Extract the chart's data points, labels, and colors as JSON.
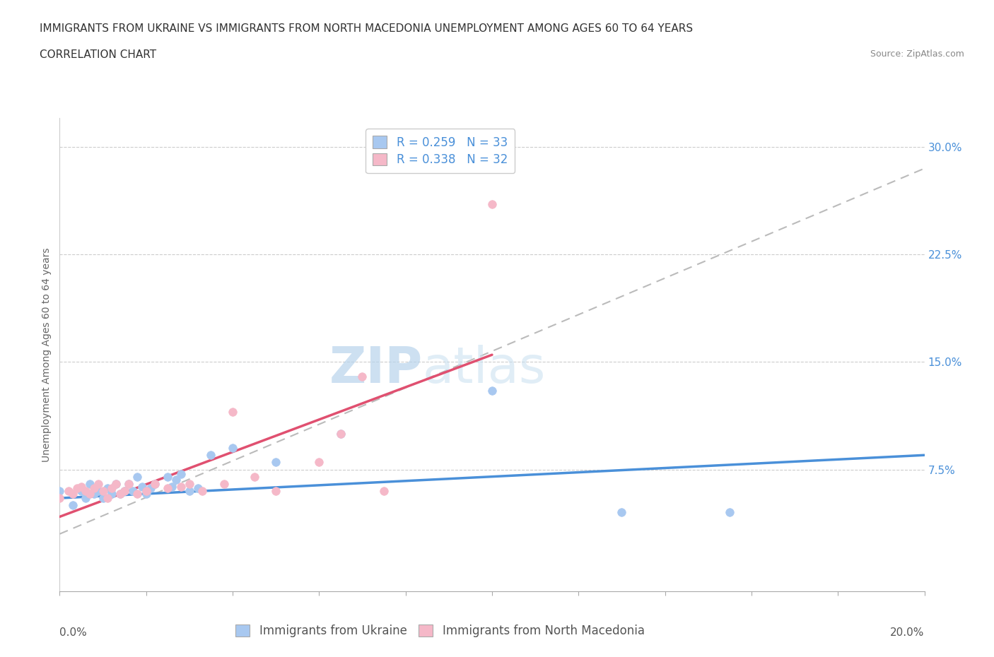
{
  "title_line1": "IMMIGRANTS FROM UKRAINE VS IMMIGRANTS FROM NORTH MACEDONIA UNEMPLOYMENT AMONG AGES 60 TO 64 YEARS",
  "title_line2": "CORRELATION CHART",
  "source": "Source: ZipAtlas.com",
  "ylabel": "Unemployment Among Ages 60 to 64 years",
  "yticks": [
    0.0,
    0.075,
    0.15,
    0.225,
    0.3
  ],
  "ytick_labels": [
    "",
    "7.5%",
    "15.0%",
    "22.5%",
    "30.0%"
  ],
  "xtick_labels": [
    "0.0%",
    "",
    "",
    "",
    "",
    "",
    "",
    "",
    "",
    "",
    "20.0%"
  ],
  "xmin": 0.0,
  "xmax": 0.2,
  "ymin": -0.01,
  "ymax": 0.32,
  "ukraine_R": 0.259,
  "ukraine_N": 33,
  "macedonia_R": 0.338,
  "macedonia_N": 32,
  "ukraine_color": "#a8c8f0",
  "macedonia_color": "#f5b8c8",
  "ukraine_line_color": "#4a90d9",
  "macedonia_line_color": "#e05070",
  "ukraine_trendline_x": [
    0.0,
    0.2
  ],
  "ukraine_trendline_y": [
    0.055,
    0.085
  ],
  "macedonia_trendline_x": [
    0.0,
    0.1
  ],
  "macedonia_trendline_y": [
    0.042,
    0.155
  ],
  "combined_trendline_x": [
    0.0,
    0.2
  ],
  "combined_trendline_y": [
    0.03,
    0.285
  ],
  "watermark_zip": "ZIP",
  "watermark_atlas": "atlas",
  "ukraine_scatter_x": [
    0.0,
    0.003,
    0.005,
    0.006,
    0.007,
    0.008,
    0.009,
    0.01,
    0.011,
    0.012,
    0.013,
    0.014,
    0.015,
    0.016,
    0.017,
    0.018,
    0.019,
    0.02,
    0.021,
    0.022,
    0.025,
    0.026,
    0.027,
    0.028,
    0.03,
    0.032,
    0.035,
    0.04,
    0.05,
    0.065,
    0.1,
    0.13,
    0.155
  ],
  "ukraine_scatter_y": [
    0.06,
    0.05,
    0.06,
    0.055,
    0.065,
    0.058,
    0.06,
    0.055,
    0.062,
    0.058,
    0.065,
    0.058,
    0.06,
    0.065,
    0.06,
    0.07,
    0.063,
    0.058,
    0.062,
    0.065,
    0.07,
    0.063,
    0.068,
    0.072,
    0.06,
    0.062,
    0.085,
    0.09,
    0.08,
    0.1,
    0.13,
    0.045,
    0.045
  ],
  "macedonia_scatter_x": [
    0.0,
    0.002,
    0.003,
    0.004,
    0.005,
    0.006,
    0.007,
    0.008,
    0.009,
    0.01,
    0.011,
    0.012,
    0.013,
    0.014,
    0.015,
    0.016,
    0.018,
    0.02,
    0.022,
    0.025,
    0.028,
    0.03,
    0.033,
    0.038,
    0.04,
    0.045,
    0.05,
    0.06,
    0.065,
    0.07,
    0.075,
    0.1
  ],
  "macedonia_scatter_y": [
    0.055,
    0.06,
    0.058,
    0.062,
    0.063,
    0.06,
    0.058,
    0.062,
    0.065,
    0.06,
    0.055,
    0.062,
    0.065,
    0.058,
    0.06,
    0.065,
    0.058,
    0.06,
    0.065,
    0.062,
    0.063,
    0.065,
    0.06,
    0.065,
    0.115,
    0.07,
    0.06,
    0.08,
    0.1,
    0.14,
    0.06,
    0.26
  ],
  "background_color": "#ffffff",
  "grid_color": "#cccccc",
  "title_fontsize": 11,
  "axis_label_fontsize": 10,
  "tick_fontsize": 11,
  "legend_fontsize": 12
}
